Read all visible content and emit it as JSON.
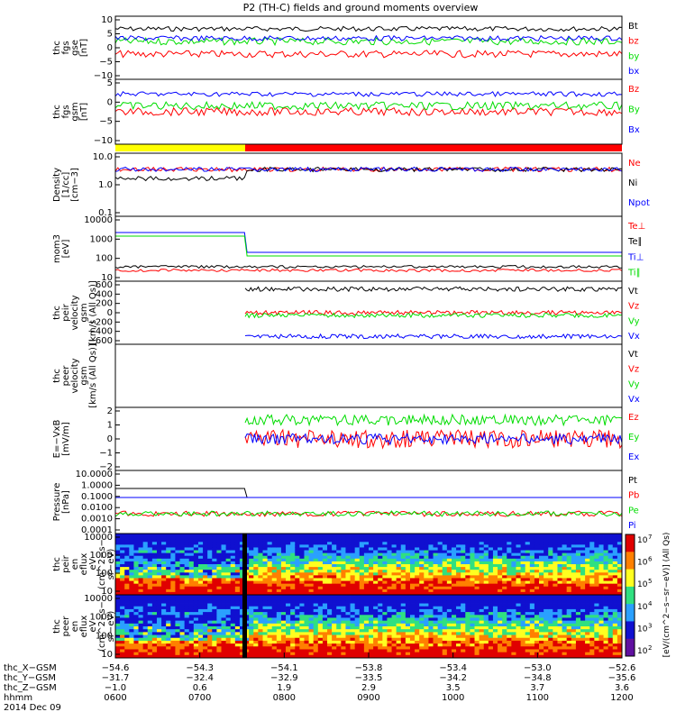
{
  "title": "P2 (TH-C) fields and ground moments overview",
  "chart_data": [
    {
      "type": "line",
      "panel": "fgs-gse",
      "ylabel_lines": [
        "thc",
        "fgs",
        "gse",
        "[nT]"
      ],
      "yticks": [
        "10",
        "5",
        "0",
        "−5",
        "−10"
      ],
      "ylim": [
        -10,
        10
      ],
      "series": [
        {
          "name": "Bt",
          "color": "#000000",
          "level": 6,
          "noise": 1.2
        },
        {
          "name": "bz",
          "color": "#ff0000",
          "level": -2,
          "noise": 1.8
        },
        {
          "name": "by",
          "color": "#00dd00",
          "level": 2,
          "noise": 1.8
        },
        {
          "name": "bx",
          "color": "#0000ff",
          "level": 3,
          "noise": 1.3
        }
      ]
    },
    {
      "type": "line",
      "panel": "fgs-gsm",
      "ylabel_lines": [
        "thc",
        "fgs",
        "gsm",
        "[nT]"
      ],
      "yticks": [
        "5",
        "0",
        "−5",
        "−10"
      ],
      "ylim": [
        -12,
        10
      ],
      "series": [
        {
          "name": "Bz",
          "color": "#ff0000",
          "level": -1,
          "noise": 2
        },
        {
          "name": "By",
          "color": "#00dd00",
          "level": 1,
          "noise": 2
        },
        {
          "name": "Bx",
          "color": "#0000ff",
          "level": 5,
          "noise": 1.2
        }
      ]
    },
    {
      "type": "line",
      "panel": "density",
      "ylabel_lines": [
        "Density",
        "[1/cc]",
        "[cm−3]"
      ],
      "yticks": [
        "10.0",
        "1.0",
        "0.1"
      ],
      "scale": "log",
      "ylim": [
        0.1,
        10
      ],
      "series": [
        {
          "name": "Ne",
          "color": "#ff0000"
        },
        {
          "name": "Ni",
          "color": "#000000"
        },
        {
          "name": "Npot",
          "color": "#0000ff"
        }
      ]
    },
    {
      "type": "line",
      "panel": "temperature",
      "ylabel_lines": [
        "mom3",
        "[eV]"
      ],
      "yticks": [
        "10000",
        "1000",
        "100",
        "10"
      ],
      "scale": "log",
      "ylim": [
        10,
        10000
      ],
      "series": [
        {
          "name": "Te⊥",
          "color": "#ff0000"
        },
        {
          "name": "Te∥",
          "color": "#000000"
        },
        {
          "name": "Ti⊥",
          "color": "#0000ff"
        },
        {
          "name": "Ti∥",
          "color": "#00dd00"
        }
      ]
    },
    {
      "type": "line",
      "panel": "peir-velocity",
      "ylabel_lines": [
        "thc",
        "peir",
        "velocity",
        "gsm",
        "[km/s (All Qs)]"
      ],
      "yticks": [
        "600",
        "400",
        "200",
        "0",
        "−200",
        "−400",
        "−600"
      ],
      "ylim": [
        -600,
        600
      ],
      "series": [
        {
          "name": "Vt",
          "color": "#000000",
          "level": 450
        },
        {
          "name": "Vz",
          "color": "#ff0000",
          "level": 0
        },
        {
          "name": "Vy",
          "color": "#00dd00",
          "level": -50
        },
        {
          "name": "Vx",
          "color": "#0000ff",
          "level": -450
        }
      ]
    },
    {
      "type": "line",
      "panel": "peer-velocity",
      "ylabel_lines": [
        "thc",
        "peer",
        "velocity",
        "gsm",
        "[km/s (All Qs)]"
      ],
      "yticks": [],
      "series": [
        {
          "name": "Vt",
          "color": "#000000"
        },
        {
          "name": "Vz",
          "color": "#ff0000"
        },
        {
          "name": "Vy",
          "color": "#00dd00"
        },
        {
          "name": "Vx",
          "color": "#0000ff"
        }
      ]
    },
    {
      "type": "line",
      "panel": "efield",
      "ylabel_lines": [
        "E=−VxB",
        "[mV/m]"
      ],
      "yticks": [
        "2",
        "1",
        "0",
        "−1",
        "−2"
      ],
      "ylim": [
        -2.5,
        2.5
      ],
      "series": [
        {
          "name": "Ez",
          "color": "#ff0000",
          "level": 0
        },
        {
          "name": "Ey",
          "color": "#00dd00",
          "level": 1.5
        },
        {
          "name": "Ex",
          "color": "#0000ff",
          "level": 0
        }
      ]
    },
    {
      "type": "line",
      "panel": "pressure",
      "ylabel_lines": [
        "Pressure",
        "[nPa]"
      ],
      "yticks": [
        "10.0000",
        "1.0000",
        "0.1000",
        "0.0100",
        "0.0010",
        "0.0001"
      ],
      "scale": "log",
      "ylim": [
        0.0001,
        10
      ],
      "series": [
        {
          "name": "Pt",
          "color": "#000000"
        },
        {
          "name": "Pb",
          "color": "#ff0000"
        },
        {
          "name": "Pe",
          "color": "#00dd00"
        },
        {
          "name": "Pi",
          "color": "#0000ff"
        }
      ]
    },
    {
      "type": "heatmap",
      "panel": "peir-spec",
      "ylabel_lines": [
        "thc",
        "peir",
        "en",
        "eflux",
        "eV",
        "(cm^2−s−",
        "sr−eV)"
      ],
      "yticks": [
        "10000",
        "1000",
        "100",
        "10"
      ]
    },
    {
      "type": "heatmap",
      "panel": "peer-spec",
      "ylabel_lines": [
        "thc",
        "peer",
        "en",
        "eflux",
        "eV",
        "(cm^2−s−",
        "sr−eV)"
      ],
      "yticks": [
        "10000",
        "1000",
        "100",
        "10"
      ]
    }
  ],
  "colorbar": {
    "ticks": [
      "10",
      "10",
      "10",
      "10",
      "10",
      "10",
      "10"
    ],
    "exponents": [
      "7",
      "6",
      "5",
      "4",
      "3",
      "2"
    ],
    "label": "[eV/(cm^2−s−sr−eV)] (All Qs)"
  },
  "xaxis": {
    "rows": [
      {
        "name": "thc_X−GSM",
        "values": [
          "−54.6",
          "−54.3",
          "−54.1",
          "−53.8",
          "−53.4",
          "−53.0",
          "−52.6"
        ]
      },
      {
        "name": "thc_Y−GSM",
        "values": [
          "−31.7",
          "−32.4",
          "−32.9",
          "−33.5",
          "−34.2",
          "−34.8",
          "−35.6"
        ]
      },
      {
        "name": "thc_Z−GSM",
        "values": [
          "−1.0",
          "0.6",
          "1.9",
          "2.9",
          "3.5",
          "3.7",
          "3.6"
        ]
      },
      {
        "name": "hhmm",
        "values": [
          "0600",
          "0700",
          "0800",
          "0900",
          "1000",
          "1100",
          "1200"
        ]
      }
    ],
    "date": "2014 Dec 09"
  }
}
